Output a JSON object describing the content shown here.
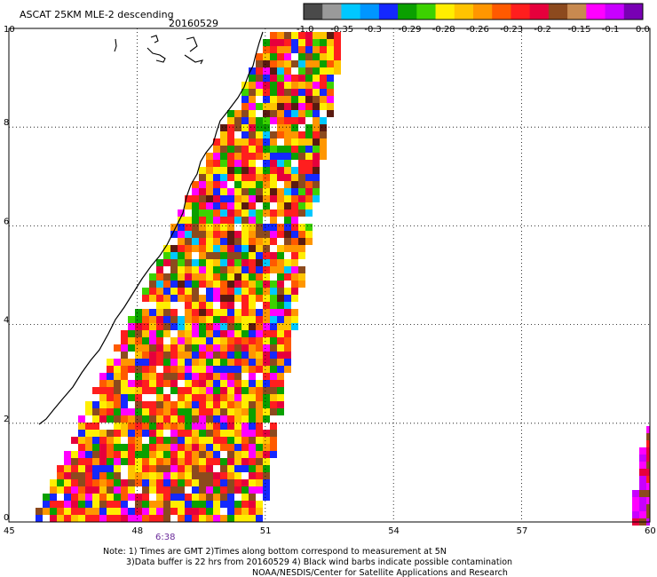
{
  "title": "ASCAT 25KM MLE-2 descending",
  "date": "20160529",
  "colorbar": {
    "colors": [
      "#4a4a4a",
      "#9a9a9a",
      "#00c8ff",
      "#0096ff",
      "#1428ff",
      "#0aa000",
      "#3cd200",
      "#ffee00",
      "#ffc400",
      "#ff9600",
      "#ff5a00",
      "#ff1e1e",
      "#e6003c",
      "#8c4a1e",
      "#c88a50",
      "#ff00ff",
      "#c800ff",
      "#7800b4"
    ],
    "labels": [
      "-1.0",
      "-0.35",
      "-0.3",
      "-0.29",
      "-0.28",
      "-0.26",
      "-0.23",
      "-0.2",
      "-0.15",
      "-0.1",
      "0.0"
    ]
  },
  "map": {
    "lon_range": [
      45,
      60
    ],
    "lat_range": [
      0,
      10
    ],
    "lon_ticks": [
      "45",
      "48",
      "51",
      "54",
      "57",
      "60"
    ],
    "lat_ticks": [
      "0",
      "2",
      "4",
      "6",
      "8",
      "10"
    ],
    "grid": "dotted"
  },
  "time_label": "6:38",
  "notes": {
    "line1": "Note: 1) Times are GMT 2)Times along bottom correspond to measurement at 5N",
    "line2": "3)Data buffer is 22 hrs from 20160529 4) Black wind barbs indicate possible contamination",
    "line3": "NOAA/NESDIS/Center for Satellite Applications and Research"
  }
}
